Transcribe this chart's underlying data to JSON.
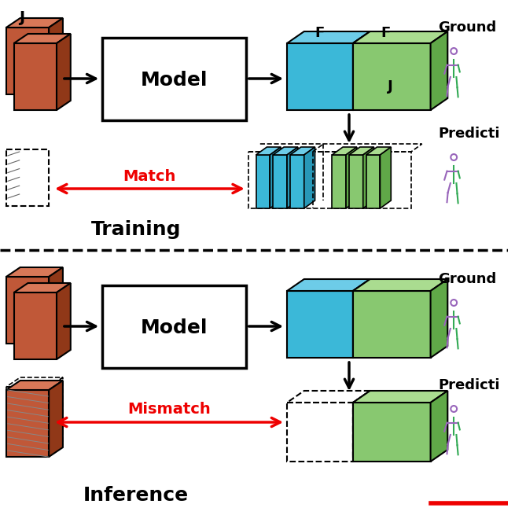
{
  "bg_color": "#ffffff",
  "blue_color": "#3BB8D8",
  "blue_top": "#6DCCE8",
  "blue_side": "#2898B8",
  "green_color": "#88C870",
  "green_top": "#AADC90",
  "green_side": "#60A848",
  "brown_color": "#C05838",
  "brown_top": "#D87858",
  "brown_side": "#903818",
  "red_color": "#EE0000",
  "black_color": "#000000",
  "purple_color": "#9966BB",
  "green_sk": "#33AA55",
  "training_label": "Training",
  "inference_label": "Inference",
  "model_label": "Model",
  "match_label": "Match",
  "mismatch_label": "Mismatch",
  "ground_label": "Ground",
  "predict_label": "Predicti",
  "j_label": "J",
  "f_label": "F"
}
